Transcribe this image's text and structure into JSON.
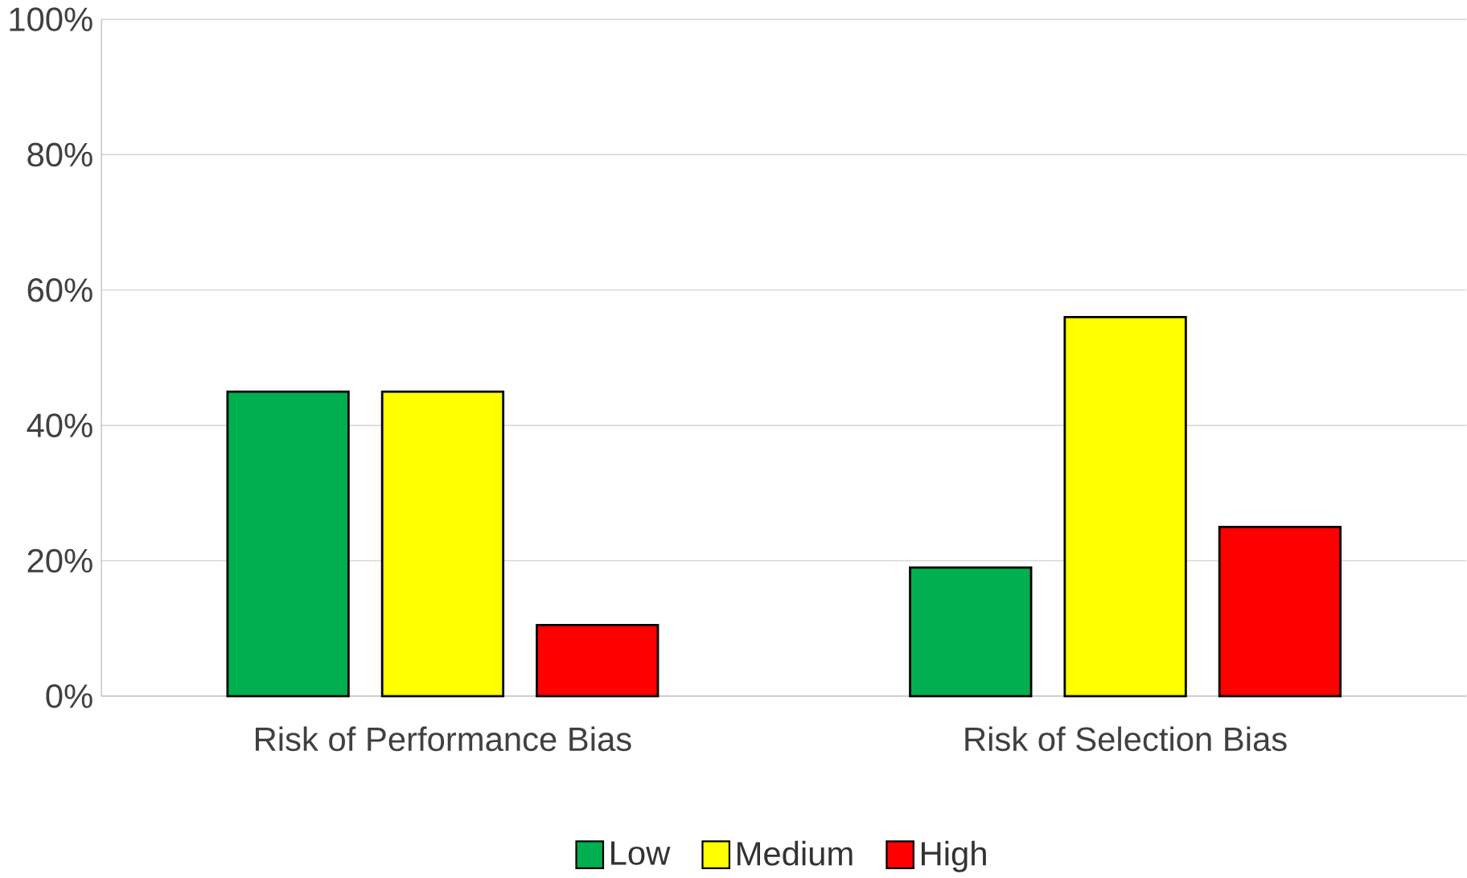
{
  "chart_data": {
    "type": "bar",
    "categories": [
      "Risk of Performance Bias",
      "Risk of Selection Bias"
    ],
    "series": [
      {
        "name": "Low",
        "color": "#00b050",
        "values": [
          45,
          19
        ]
      },
      {
        "name": "Medium",
        "color": "#ffff00",
        "values": [
          45,
          56
        ]
      },
      {
        "name": "High",
        "color": "#ff0000",
        "values": [
          10.5,
          25
        ]
      }
    ],
    "ylim": [
      0,
      100
    ],
    "yticks": [
      {
        "value": 0,
        "label": "0%"
      },
      {
        "value": 20,
        "label": "20%"
      },
      {
        "value": 40,
        "label": "40%"
      },
      {
        "value": 60,
        "label": "60%"
      },
      {
        "value": 80,
        "label": "80%"
      },
      {
        "value": 100,
        "label": "100%"
      }
    ],
    "grid": "y",
    "legend": "bottom"
  }
}
